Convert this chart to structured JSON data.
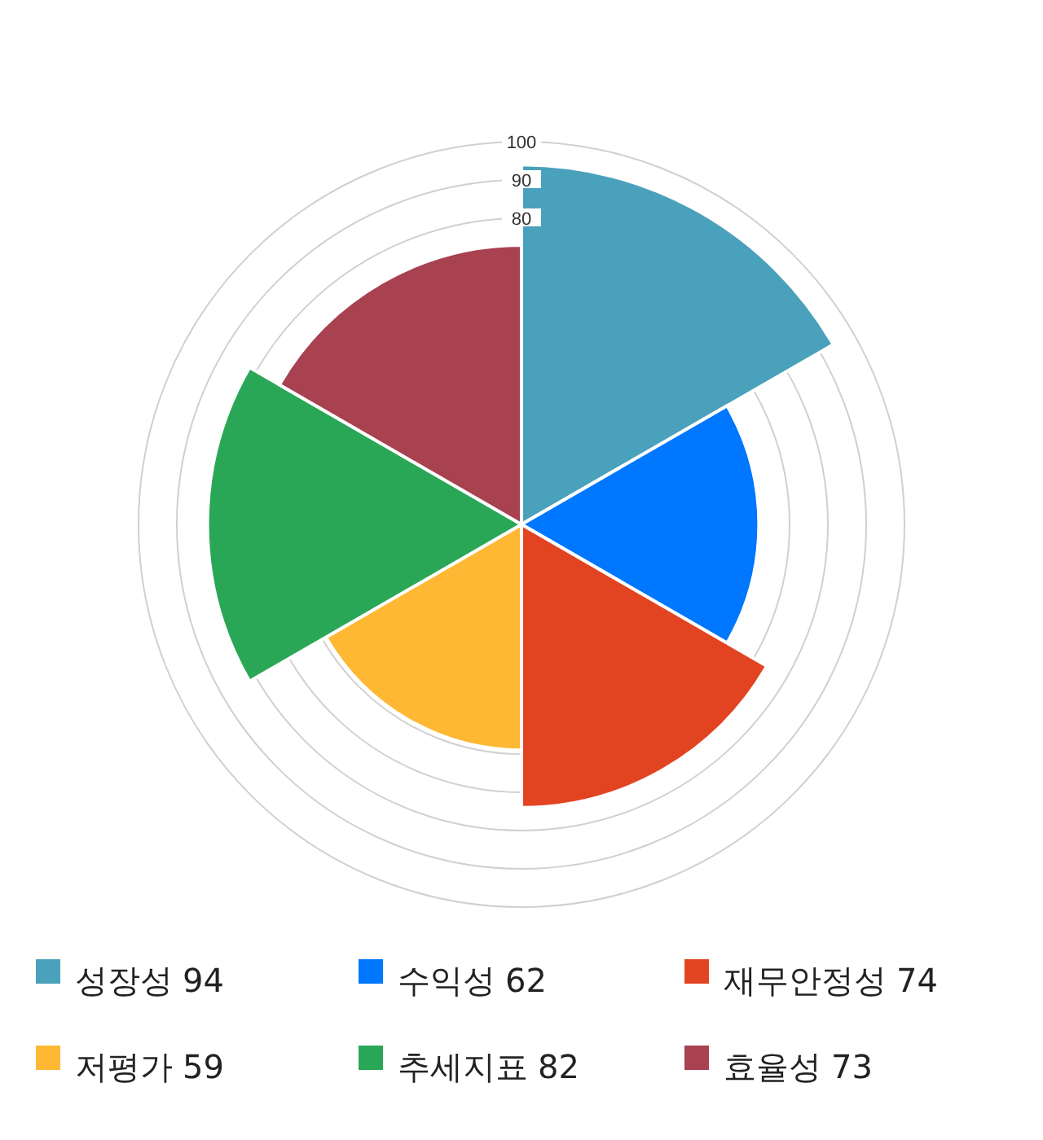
{
  "chart_data": {
    "type": "other",
    "categories": [
      "성장성",
      "수익성",
      "재무안정성",
      "저평가",
      "추세지표",
      "효율성"
    ],
    "values": [
      94,
      62,
      74,
      59,
      82,
      73
    ],
    "value_labels": [
      "94",
      "62",
      "74",
      "59",
      "82",
      "73"
    ],
    "colors": [
      "#4aa1bb",
      "#0077ff",
      "#e24422",
      "#ffb833",
      "#2aa756",
      "#a84150"
    ],
    "annotations": [
      "100",
      "90",
      "80"
    ]
  }
}
